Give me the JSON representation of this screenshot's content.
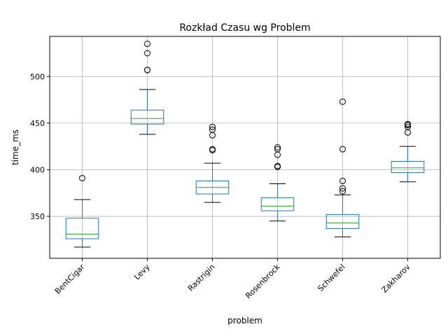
{
  "chart_data": {
    "type": "box",
    "title": "Rozkład Czasu wg Problem",
    "xlabel": "problem",
    "ylabel": "time_ms",
    "ylim": [
      305,
      543
    ],
    "yticks": [
      350,
      400,
      450,
      500
    ],
    "grid": true,
    "colors": {
      "box": "#1f77b4",
      "median": "#2ca02c",
      "flier": "#000000",
      "grid": "#b0b0b0"
    },
    "categories": [
      "BentCigar",
      "Levy",
      "Rastrigin",
      "Rosenbrock",
      "Schwefel",
      "Zakharov"
    ],
    "boxes": [
      {
        "category": "BentCigar",
        "whisker_low": 317,
        "q1": 326,
        "median": 331,
        "q3": 348,
        "whisker_high": 368,
        "outliers": [
          391
        ]
      },
      {
        "category": "Levy",
        "whisker_low": 438,
        "q1": 449,
        "median": 455,
        "q3": 464,
        "whisker_high": 486,
        "outliers": [
          507,
          507,
          525,
          535
        ]
      },
      {
        "category": "Rastrigin",
        "whisker_low": 365,
        "q1": 374,
        "median": 381,
        "q3": 388,
        "whisker_high": 407,
        "outliers": [
          421,
          422,
          437,
          443,
          446
        ]
      },
      {
        "category": "Rosenbrock",
        "whisker_low": 345,
        "q1": 356,
        "median": 361,
        "q3": 370,
        "whisker_high": 385,
        "outliers": [
          403,
          404,
          416,
          422,
          424
        ]
      },
      {
        "category": "Schwefel",
        "whisker_low": 328,
        "q1": 337,
        "median": 343,
        "q3": 352,
        "whisker_high": 373,
        "outliers": [
          377,
          380,
          388,
          422,
          473
        ]
      },
      {
        "category": "Zakharov",
        "whisker_low": 387,
        "q1": 397,
        "median": 402,
        "q3": 409,
        "whisker_high": 425,
        "outliers": [
          440,
          446,
          448,
          449
        ]
      }
    ]
  }
}
